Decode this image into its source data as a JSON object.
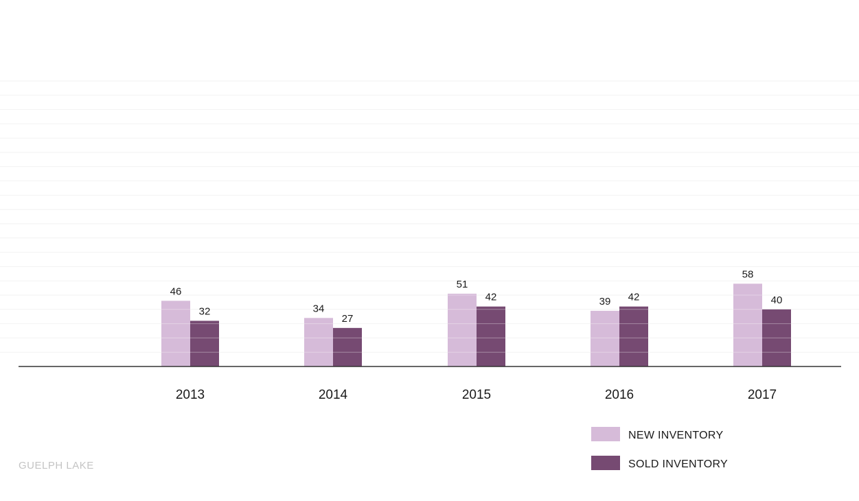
{
  "chart_data": {
    "type": "bar",
    "categories": [
      "2013",
      "2014",
      "2015",
      "2016",
      "2017"
    ],
    "series": [
      {
        "name": "NEW INVENTORY",
        "values": [
          46,
          34,
          51,
          39,
          58
        ],
        "color": "#d6bbd9"
      },
      {
        "name": "SOLD INVENTORY",
        "values": [
          32,
          27,
          42,
          42,
          40
        ],
        "color": "#764a72"
      }
    ],
    "ylim": [
      0,
      200
    ],
    "grid": true,
    "legend_position": "bottom-right",
    "axis_color": "#333333",
    "grid_color": "#f2f2f2"
  },
  "footer": {
    "label": "GUELPH LAKE"
  }
}
